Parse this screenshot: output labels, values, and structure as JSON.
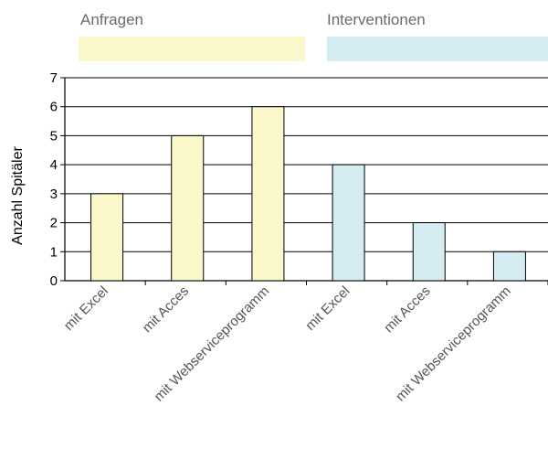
{
  "chart_data": {
    "type": "bar",
    "title": "",
    "xlabel": "",
    "ylabel": "Anzahl Spitäler",
    "ylim": [
      0,
      7
    ],
    "yticks": [
      0,
      1,
      2,
      3,
      4,
      5,
      6,
      7
    ],
    "grid": true,
    "groups": [
      {
        "label": "Anfragen",
        "color": "#fbf8cc"
      },
      {
        "label": "Interventionen",
        "color": "#d4ecf2"
      }
    ],
    "categories": [
      "mit Excel",
      "mit Acces",
      "mit  Webserviceprogramm",
      "mit Excel",
      "mit Acces",
      "mit  Webserviceprogramm"
    ],
    "values": [
      3,
      5,
      6,
      4,
      2,
      1
    ],
    "bar_group": [
      0,
      0,
      0,
      1,
      1,
      1
    ]
  }
}
